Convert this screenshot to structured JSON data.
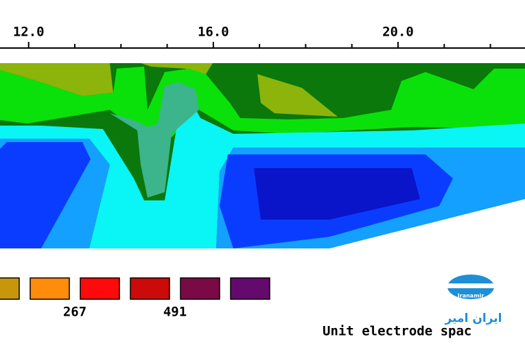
{
  "chart_data": {
    "type": "contour",
    "xlim": [
      11.38,
      22.75
    ],
    "xticks": [
      {
        "value": 12,
        "label": "12.0"
      },
      {
        "value": 16,
        "label": "16.0"
      },
      {
        "value": 20,
        "label": "20.0"
      }
    ],
    "xminorticks": [
      13,
      14,
      15,
      17,
      18,
      19,
      21,
      22
    ],
    "xlabel": "Unit electrode spac",
    "legend": {
      "colors": [
        "#c8960a",
        "#ff8c0a",
        "#ff0a0a",
        "#cc0a0a",
        "#7a0a46",
        "#640a6e"
      ],
      "boundaries": [
        267,
        491
      ]
    }
  },
  "watermark": {
    "text": "ایران امیر",
    "logo_text": "Iranamir"
  }
}
